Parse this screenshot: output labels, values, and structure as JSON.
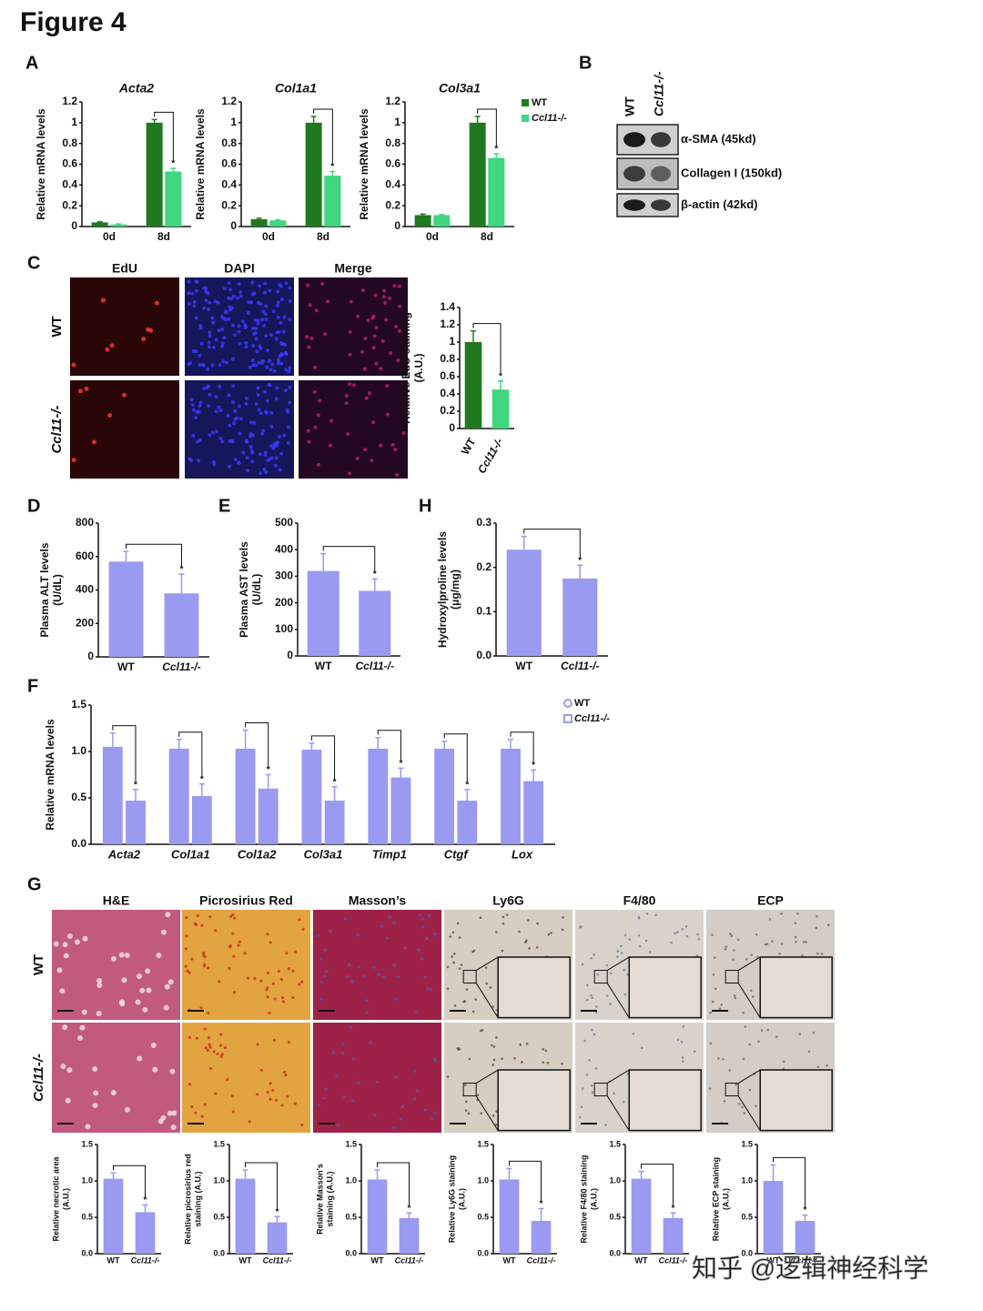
{
  "figure_title": "Figure 4",
  "panels": [
    "A",
    "B",
    "C",
    "D",
    "E",
    "H",
    "F",
    "G"
  ],
  "blot": {
    "columns": [
      "WT",
      "Ccl11-/-"
    ],
    "rows": [
      "α-SMA (45kd)",
      "Collagen I (150kd)",
      "β-actin (42kd)"
    ]
  },
  "images": {
    "C": {
      "columns": [
        "EdU",
        "DAPI",
        "Merge"
      ],
      "rows": [
        "WT",
        "Ccl11-/-"
      ]
    },
    "G": {
      "columns": [
        "H&E",
        "Picrosirius Red",
        "Masson’s",
        "Ly6G",
        "F4/80",
        "ECP"
      ],
      "rows": [
        "WT",
        "Ccl11-/-"
      ]
    }
  },
  "watermark": "知乎 @逻辑神经科学",
  "chart_data": [
    {
      "type": "bar",
      "title": "Acta2",
      "y_label": [
        "Relative mRNA levels"
      ],
      "categories": [
        "0d",
        "8d"
      ],
      "series": [
        {
          "name": "WT",
          "color": "#1f7a1f",
          "values": [
            0.04,
            1.0
          ],
          "errors": [
            0.005,
            0.03
          ]
        },
        {
          "name": "Ccl11-/-",
          "color": "#3fd67f",
          "values": [
            0.02,
            0.53
          ],
          "errors": [
            0.005,
            0.03
          ]
        }
      ],
      "ylim": [
        0,
        1.2
      ],
      "yticks": [
        0,
        0.2,
        0.4,
        0.6,
        0.8,
        1,
        1.2
      ],
      "significance": "*"
    },
    {
      "type": "bar",
      "title": "Col1a1",
      "y_label": [
        "Relative mRNA levels"
      ],
      "categories": [
        "0d",
        "8d"
      ],
      "series": [
        {
          "name": "WT",
          "color": "#1f7a1f",
          "values": [
            0.07,
            1.0
          ],
          "errors": [
            0.01,
            0.06
          ]
        },
        {
          "name": "Ccl11-/-",
          "color": "#3fd67f",
          "values": [
            0.06,
            0.49
          ],
          "errors": [
            0.005,
            0.04
          ]
        }
      ],
      "ylim": [
        0,
        1.2
      ],
      "yticks": [
        0,
        0.2,
        0.4,
        0.6,
        0.8,
        1,
        1.2
      ],
      "significance": "*"
    },
    {
      "type": "bar",
      "title": "Col3a1",
      "y_label": [
        "Relative mRNA levels"
      ],
      "categories": [
        "0d",
        "8d"
      ],
      "series": [
        {
          "name": "WT",
          "color": "#1f7a1f",
          "values": [
            0.11,
            1.0
          ],
          "errors": [
            0.01,
            0.06
          ]
        },
        {
          "name": "Ccl11-/-",
          "color": "#3fd67f",
          "values": [
            0.11,
            0.66
          ],
          "errors": [
            0.005,
            0.04
          ]
        }
      ],
      "ylim": [
        0,
        1.2
      ],
      "yticks": [
        0,
        0.2,
        0.4,
        0.6,
        0.8,
        1,
        1.2
      ],
      "significance": "*",
      "legend": "right"
    },
    {
      "type": "bar",
      "y_label": [
        "Relative EdU staining",
        "(A.U.)"
      ],
      "categories": [
        "WT",
        "Ccl11-/-"
      ],
      "values": [
        1.0,
        0.45
      ],
      "errors": [
        0.13,
        0.1
      ],
      "colors": [
        "#1f7a1f",
        "#3fd67f"
      ],
      "ylim": [
        0,
        1.4
      ],
      "yticks": [
        0,
        0.2,
        0.4,
        0.6,
        0.8,
        1,
        1.2,
        1.4
      ],
      "significance": "*"
    },
    {
      "type": "bar",
      "y_label": [
        "Plasma ALT levels",
        "(U/dL)"
      ],
      "categories": [
        "WT",
        "Ccl11-/-"
      ],
      "values": [
        570,
        380
      ],
      "errors": [
        60,
        115
      ],
      "color": "#9a9af0",
      "ylim": [
        0,
        800
      ],
      "yticks": [
        0,
        200,
        400,
        600,
        800
      ],
      "significance": "*"
    },
    {
      "type": "bar",
      "y_label": [
        "Plasma AST levels",
        "(U/dL)"
      ],
      "categories": [
        "WT",
        "Ccl11-/-"
      ],
      "values": [
        320,
        245
      ],
      "errors": [
        65,
        45
      ],
      "color": "#9a9af0",
      "ylim": [
        0,
        500
      ],
      "yticks": [
        0,
        100,
        200,
        300,
        400,
        500
      ],
      "significance": "*"
    },
    {
      "type": "bar",
      "y_label": [
        "Hydroxylproline levels",
        "(μg/mg)"
      ],
      "categories": [
        "WT",
        "Ccl11-/-"
      ],
      "values": [
        0.24,
        0.175
      ],
      "errors": [
        0.03,
        0.03
      ],
      "color": "#9a9af0",
      "ylim": [
        0,
        0.3
      ],
      "yticks": [
        {
          "value": 0,
          "label": "0.0"
        },
        0.1,
        0.2,
        0.3
      ],
      "significance": "*"
    },
    {
      "type": "bar",
      "y_label": [
        "Relative mRNA levels"
      ],
      "categories": [
        "Acta2",
        "Col1a1",
        "Col1a2",
        "Col3a1",
        "Timp1",
        "Ctgf",
        "Lox"
      ],
      "series": [
        {
          "name": "WT",
          "color": "#9a9af0",
          "marker": "circle",
          "values": [
            1.05,
            1.03,
            1.03,
            1.02,
            1.03,
            1.03,
            1.03
          ],
          "errors": [
            0.15,
            0.1,
            0.2,
            0.07,
            0.12,
            0.08,
            0.1
          ]
        },
        {
          "name": "Ccl11-/-",
          "color": "#9a9af0",
          "marker": "square",
          "values": [
            0.47,
            0.52,
            0.6,
            0.47,
            0.72,
            0.47,
            0.68
          ],
          "errors": [
            0.12,
            0.13,
            0.15,
            0.15,
            0.1,
            0.12,
            0.12
          ]
        }
      ],
      "ylim": [
        0,
        1.5
      ],
      "yticks": [
        {
          "value": 0,
          "label": "0.0"
        },
        0.5,
        {
          "value": 1,
          "label": "1.0"
        },
        1.5
      ],
      "significance": "*",
      "legend": "right"
    },
    {
      "type": "bar",
      "y_label": [
        "Relative necrotic area",
        "(A.U.)"
      ],
      "categories": [
        "WT",
        "Ccl11-/-"
      ],
      "values": [
        1.03,
        0.57
      ],
      "errors": [
        0.08,
        0.1
      ],
      "color": "#9a9af0",
      "ylim": [
        0,
        1.5
      ],
      "yticks": [
        {
          "value": 0,
          "label": "0.0"
        },
        0.5,
        {
          "value": 1,
          "label": "1.0"
        },
        1.5
      ],
      "significance": "*"
    },
    {
      "type": "bar",
      "y_label": [
        "Relative picrosirius red",
        "staining (A.U.)"
      ],
      "categories": [
        "WT",
        "Ccl11-/-"
      ],
      "values": [
        1.03,
        0.43
      ],
      "errors": [
        0.12,
        0.08
      ],
      "color": "#9a9af0",
      "ylim": [
        0,
        1.5
      ],
      "yticks": [
        {
          "value": 0,
          "label": "0.0"
        },
        0.5,
        {
          "value": 1,
          "label": "1.0"
        },
        1.5
      ],
      "significance": "*"
    },
    {
      "type": "bar",
      "y_label": [
        "Relative Masson's",
        "staining (A.U.)"
      ],
      "categories": [
        "WT",
        "Ccl11-/-"
      ],
      "values": [
        1.02,
        0.49
      ],
      "errors": [
        0.13,
        0.07
      ],
      "color": "#9a9af0",
      "ylim": [
        0,
        1.5
      ],
      "yticks": [
        {
          "value": 0,
          "label": "0.0"
        },
        0.5,
        {
          "value": 1,
          "label": "1.0"
        },
        1.5
      ],
      "significance": "*"
    },
    {
      "type": "bar",
      "y_label": [
        "Relative Ly6G staining",
        "(A.U.)"
      ],
      "categories": [
        "WT",
        "Ccl11-/-"
      ],
      "values": [
        1.02,
        0.45
      ],
      "errors": [
        0.15,
        0.17
      ],
      "color": "#9a9af0",
      "ylim": [
        0,
        1.5
      ],
      "yticks": [
        {
          "value": 0,
          "label": "0.0"
        },
        0.5,
        {
          "value": 1,
          "label": "1.0"
        },
        1.5
      ],
      "significance": "*"
    },
    {
      "type": "bar",
      "y_label": [
        "Relative F4/80 staining",
        "(A.U.)"
      ],
      "categories": [
        "WT",
        "Ccl11-/-"
      ],
      "values": [
        1.03,
        0.49
      ],
      "errors": [
        0.1,
        0.07
      ],
      "color": "#9a9af0",
      "ylim": [
        0,
        1.5
      ],
      "yticks": [
        {
          "value": 0,
          "label": "0.0"
        },
        0.5,
        {
          "value": 1,
          "label": "1.0"
        },
        1.5
      ],
      "significance": "*"
    },
    {
      "type": "bar",
      "y_label": [
        "Relative ECP staining",
        "(A.U.)"
      ],
      "categories": [
        "WT",
        "Ccl11-/-"
      ],
      "values": [
        1.0,
        0.45
      ],
      "errors": [
        0.22,
        0.08
      ],
      "color": "#9a9af0",
      "ylim": [
        0,
        1.5
      ],
      "yticks": [
        {
          "value": 0,
          "label": "0.0"
        },
        0.5,
        {
          "value": 1,
          "label": "1.0"
        },
        1.5
      ],
      "significance": "*"
    }
  ]
}
